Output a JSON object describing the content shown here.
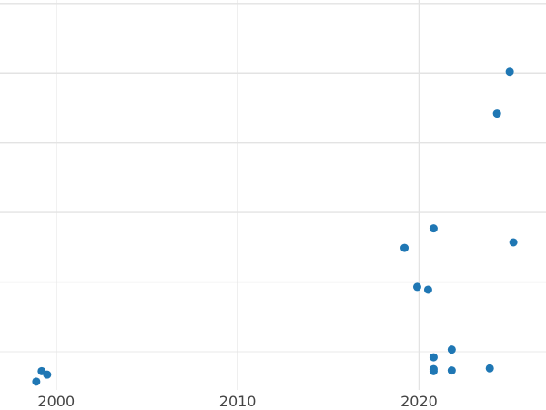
{
  "chart_data": {
    "type": "scatter",
    "title": "",
    "xlabel": "",
    "ylabel": "",
    "xlim": [
      1996.9,
      2027
    ],
    "ylim": [
      -0.55,
      5.05
    ],
    "x_ticks": [
      2000,
      2010,
      2020
    ],
    "x_tick_labels": [
      "2000",
      "2010",
      "2020"
    ],
    "y_ticks": [
      0,
      1,
      2,
      3,
      4,
      5
    ],
    "y_tick_labels": [
      "",
      "",
      "",
      "",
      "",
      ""
    ],
    "grid": true,
    "legend": "none",
    "point_color": "#1f77b4",
    "series": [
      {
        "x": [
          1998.9,
          1999.2,
          1999.5,
          2019.2,
          2019.9,
          2020.5,
          2020.8,
          2020.8,
          2020.8,
          2020.8,
          2021.8,
          2021.8,
          2023.9,
          2024.3,
          2025.0,
          2025.2
        ],
        "y": [
          -0.43,
          -0.28,
          -0.33,
          1.49,
          0.93,
          0.89,
          1.77,
          -0.08,
          -0.25,
          -0.28,
          0.03,
          -0.27,
          -0.24,
          3.42,
          4.02,
          1.57
        ]
      }
    ]
  }
}
